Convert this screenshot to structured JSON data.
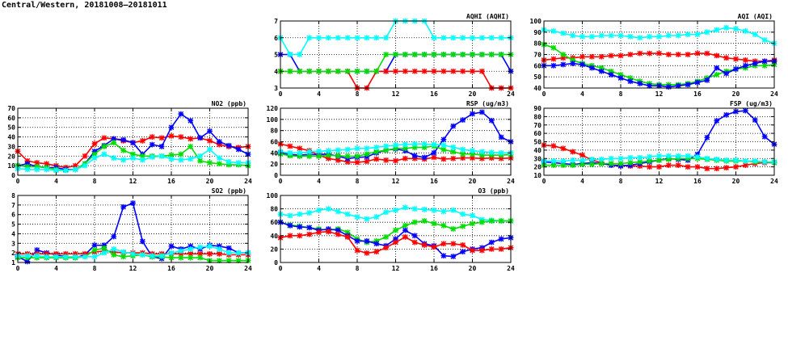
{
  "title": "Central/Western, 20181008–20181011",
  "colors": {
    "blue": "#0000ff",
    "red": "#ff0000",
    "green": "#00dd00",
    "cyan": "#00ffff"
  },
  "chart_data": [
    {
      "id": "aqhi",
      "type": "line",
      "title": "AQHI (AQHI)",
      "x": [
        0,
        1,
        2,
        3,
        4,
        5,
        6,
        7,
        8,
        9,
        10,
        11,
        12,
        13,
        14,
        15,
        16,
        17,
        18,
        19,
        20,
        21,
        22,
        23,
        24
      ],
      "xlim": [
        0,
        24
      ],
      "xticks": [
        0,
        4,
        8,
        12,
        16,
        20,
        24
      ],
      "ylim": [
        3,
        7
      ],
      "yticks": [
        3,
        4,
        5,
        6,
        7
      ],
      "grid": true,
      "series": [
        {
          "name": "blue",
          "color": "#0000ff",
          "values": [
            5,
            5,
            4,
            4,
            4,
            4,
            4,
            4,
            4,
            4,
            4,
            4,
            5,
            5,
            5,
            5,
            5,
            5,
            5,
            5,
            5,
            5,
            5,
            5,
            4
          ]
        },
        {
          "name": "red",
          "color": "#ff0000",
          "values": [
            4,
            4,
            4,
            4,
            4,
            4,
            4,
            4,
            3,
            3,
            4,
            4,
            4,
            4,
            4,
            4,
            4,
            4,
            4,
            4,
            4,
            4,
            3,
            3,
            3
          ]
        },
        {
          "name": "green",
          "color": "#00dd00",
          "values": [
            4,
            4,
            4,
            4,
            4,
            4,
            4,
            4,
            4,
            4,
            4,
            5,
            5,
            5,
            5,
            5,
            5,
            5,
            5,
            5,
            5,
            5,
            5,
            5,
            5
          ]
        },
        {
          "name": "cyan",
          "color": "#00ffff",
          "values": [
            6,
            5,
            5,
            6,
            6,
            6,
            6,
            6,
            6,
            6,
            6,
            6,
            7,
            7,
            7,
            7,
            6,
            6,
            6,
            6,
            6,
            6,
            6,
            6,
            6
          ]
        }
      ]
    },
    {
      "id": "aqi",
      "type": "line",
      "title": "AQI (AQI)",
      "x": [
        0,
        1,
        2,
        3,
        4,
        5,
        6,
        7,
        8,
        9,
        10,
        11,
        12,
        13,
        14,
        15,
        16,
        17,
        18,
        19,
        20,
        21,
        22,
        23,
        24
      ],
      "xlim": [
        0,
        24
      ],
      "xticks": [
        0,
        4,
        8,
        12,
        16,
        20,
        24
      ],
      "ylim": [
        40,
        100
      ],
      "yticks": [
        40,
        50,
        60,
        70,
        80,
        90,
        100
      ],
      "grid": true,
      "series": [
        {
          "name": "cyan",
          "color": "#00ffff",
          "values": [
            92,
            91,
            89,
            87,
            86,
            86,
            87,
            87,
            87,
            86,
            85,
            86,
            86,
            87,
            87,
            88,
            88,
            90,
            92,
            94,
            93,
            91,
            88,
            83,
            80
          ]
        },
        {
          "name": "red",
          "color": "#ff0000",
          "values": [
            65,
            66,
            67,
            67,
            68,
            68,
            68,
            69,
            69,
            70,
            71,
            71,
            71,
            70,
            70,
            70,
            71,
            71,
            69,
            67,
            66,
            65,
            64,
            64,
            65
          ]
        },
        {
          "name": "green",
          "color": "#00dd00",
          "values": [
            79,
            76,
            70,
            65,
            62,
            60,
            58,
            55,
            52,
            49,
            46,
            44,
            43,
            43,
            43,
            44,
            46,
            49,
            52,
            55,
            57,
            58,
            60,
            60,
            61
          ]
        },
        {
          "name": "blue",
          "color": "#0000ff",
          "values": [
            60,
            60,
            61,
            62,
            61,
            58,
            55,
            52,
            49,
            46,
            44,
            42,
            42,
            41,
            42,
            43,
            45,
            47,
            58,
            53,
            57,
            60,
            62,
            64,
            64
          ]
        }
      ]
    },
    {
      "id": "no2",
      "type": "line",
      "title": "NO2 (ppb)",
      "x": [
        0,
        1,
        2,
        3,
        4,
        5,
        6,
        7,
        8,
        9,
        10,
        11,
        12,
        13,
        14,
        15,
        16,
        17,
        18,
        19,
        20,
        21,
        22,
        23,
        24
      ],
      "xlim": [
        0,
        24
      ],
      "xticks": [
        0,
        4,
        8,
        12,
        16,
        20,
        24
      ],
      "ylim": [
        0,
        70
      ],
      "yticks": [
        0,
        10,
        20,
        30,
        40,
        50,
        60,
        70
      ],
      "grid": true,
      "series": [
        {
          "name": "red",
          "color": "#ff0000",
          "values": [
            25,
            15,
            13,
            12,
            10,
            8,
            10,
            20,
            33,
            39,
            38,
            36,
            34,
            36,
            40,
            39,
            41,
            40,
            38,
            39,
            36,
            32,
            30,
            29,
            30
          ]
        },
        {
          "name": "blue",
          "color": "#0000ff",
          "values": [
            10,
            12,
            9,
            8,
            8,
            6,
            6,
            12,
            25,
            31,
            38,
            37,
            34,
            22,
            32,
            30,
            50,
            64,
            57,
            39,
            46,
            35,
            31,
            27,
            22
          ]
        },
        {
          "name": "green",
          "color": "#00dd00",
          "values": [
            10,
            9,
            9,
            8,
            6,
            5,
            6,
            12,
            22,
            30,
            34,
            26,
            22,
            20,
            20,
            20,
            21,
            22,
            30,
            15,
            13,
            12,
            11,
            11,
            10
          ]
        },
        {
          "name": "cyan",
          "color": "#00ffff",
          "values": [
            7,
            6,
            6,
            6,
            5,
            5,
            6,
            10,
            18,
            22,
            18,
            16,
            18,
            16,
            19,
            20,
            17,
            16,
            17,
            20,
            27,
            18,
            14,
            13,
            13
          ]
        }
      ]
    },
    {
      "id": "rsp",
      "type": "line",
      "title": "RSP (ug/m3)",
      "x": [
        0,
        1,
        2,
        3,
        4,
        5,
        6,
        7,
        8,
        9,
        10,
        11,
        12,
        13,
        14,
        15,
        16,
        17,
        18,
        19,
        20,
        21,
        22,
        23,
        24
      ],
      "xlim": [
        0,
        24
      ],
      "xticks": [
        0,
        4,
        8,
        12,
        16,
        20,
        24
      ],
      "ylim": [
        0,
        120
      ],
      "yticks": [
        0,
        20,
        40,
        60,
        80,
        100,
        120
      ],
      "grid": true,
      "series": [
        {
          "name": "red",
          "color": "#ff0000",
          "values": [
            56,
            52,
            48,
            44,
            36,
            30,
            27,
            24,
            23,
            25,
            29,
            27,
            26,
            30,
            30,
            29,
            32,
            29,
            30,
            31,
            31,
            30,
            31,
            30,
            31
          ]
        },
        {
          "name": "blue",
          "color": "#0000ff",
          "values": [
            40,
            37,
            36,
            37,
            37,
            38,
            34,
            30,
            32,
            33,
            40,
            45,
            47,
            44,
            35,
            32,
            40,
            64,
            88,
            99,
            110,
            113,
            98,
            68,
            60
          ]
        },
        {
          "name": "green",
          "color": "#00dd00",
          "values": [
            38,
            35,
            34,
            34,
            34,
            36,
            35,
            34,
            34,
            38,
            42,
            45,
            48,
            48,
            50,
            50,
            52,
            46,
            42,
            38,
            38,
            36,
            36,
            36,
            37
          ]
        },
        {
          "name": "cyan",
          "color": "#00ffff",
          "values": [
            42,
            40,
            40,
            42,
            43,
            44,
            45,
            46,
            48,
            48,
            50,
            52,
            54,
            55,
            56,
            56,
            55,
            54,
            50,
            46,
            44,
            42,
            41,
            40,
            40
          ]
        }
      ]
    },
    {
      "id": "fsp",
      "type": "line",
      "title": "FSP (ug/m3)",
      "x": [
        0,
        1,
        2,
        3,
        4,
        5,
        6,
        7,
        8,
        9,
        10,
        11,
        12,
        13,
        14,
        15,
        16,
        17,
        18,
        19,
        20,
        21,
        22,
        23,
        24
      ],
      "xlim": [
        0,
        24
      ],
      "xticks": [
        0,
        4,
        8,
        12,
        16,
        20,
        24
      ],
      "ylim": [
        10,
        90
      ],
      "yticks": [
        10,
        20,
        30,
        40,
        50,
        60,
        70,
        80,
        90
      ],
      "grid": true,
      "series": [
        {
          "name": "red",
          "color": "#ff0000",
          "values": [
            46,
            45,
            42,
            38,
            34,
            28,
            25,
            22,
            22,
            21,
            21,
            20,
            20,
            22,
            22,
            20,
            20,
            18,
            18,
            19,
            20,
            22,
            24,
            25,
            25
          ]
        },
        {
          "name": "blue",
          "color": "#0000ff",
          "values": [
            26,
            25,
            24,
            23,
            24,
            25,
            24,
            22,
            21,
            22,
            24,
            26,
            28,
            30,
            29,
            28,
            35,
            55,
            75,
            82,
            86,
            87,
            76,
            56,
            47
          ]
        },
        {
          "name": "green",
          "color": "#00dd00",
          "values": [
            22,
            22,
            22,
            22,
            23,
            23,
            24,
            24,
            24,
            25,
            26,
            27,
            28,
            29,
            30,
            30,
            30,
            29,
            28,
            27,
            27,
            27,
            26,
            26,
            25
          ]
        },
        {
          "name": "cyan",
          "color": "#00ffff",
          "values": [
            27,
            27,
            27,
            28,
            28,
            29,
            29,
            30,
            30,
            31,
            31,
            32,
            33,
            33,
            33,
            33,
            32,
            30,
            29,
            28,
            28,
            27,
            27,
            26,
            26
          ]
        }
      ]
    },
    {
      "id": "so2",
      "type": "line",
      "title": "SO2 (ppb)",
      "x": [
        0,
        1,
        2,
        3,
        4,
        5,
        6,
        7,
        8,
        9,
        10,
        11,
        12,
        13,
        14,
        15,
        16,
        17,
        18,
        19,
        20,
        21,
        22,
        23,
        24
      ],
      "xlim": [
        0,
        24
      ],
      "xticks": [
        0,
        4,
        8,
        12,
        16,
        20,
        24
      ],
      "ylim": [
        1,
        8
      ],
      "yticks": [
        1,
        2,
        3,
        4,
        5,
        6,
        7,
        8
      ],
      "grid": true,
      "series": [
        {
          "name": "blue",
          "color": "#0000ff",
          "values": [
            1.6,
            1.1,
            2.3,
            2,
            1.8,
            1.6,
            1.5,
            1.8,
            2.8,
            2.8,
            3.7,
            6.8,
            7.2,
            3.2,
            1.6,
            1.4,
            2.7,
            2.4,
            2.7,
            2.4,
            2.8,
            2.7,
            2.5,
            2,
            2
          ]
        },
        {
          "name": "red",
          "color": "#ff0000",
          "values": [
            1.9,
            1.9,
            1.9,
            1.9,
            1.9,
            1.9,
            1.9,
            1.9,
            2.1,
            2.2,
            2.1,
            2,
            2,
            2,
            1.9,
            1.9,
            1.9,
            1.9,
            1.9,
            1.9,
            1.9,
            1.9,
            1.8,
            1.8,
            1.8
          ]
        },
        {
          "name": "green",
          "color": "#00dd00",
          "values": [
            1.5,
            1.5,
            1.5,
            1.5,
            1.5,
            1.5,
            1.5,
            1.6,
            2.3,
            2.5,
            1.8,
            1.6,
            1.7,
            1.8,
            1.6,
            1.6,
            1.5,
            1.5,
            1.5,
            1.5,
            1.2,
            1.2,
            1.2,
            1.2,
            1.2
          ]
        },
        {
          "name": "cyan",
          "color": "#00ffff",
          "values": [
            1.7,
            1.7,
            1.7,
            1.6,
            1.6,
            1.6,
            1.6,
            1.6,
            1.6,
            2,
            2.4,
            2.1,
            1.9,
            1.8,
            1.7,
            1.7,
            2,
            2.2,
            2.4,
            2.6,
            2.7,
            2.4,
            2,
            2,
            2
          ]
        }
      ]
    },
    {
      "id": "o3",
      "type": "line",
      "title": "O3 (ppb)",
      "x": [
        0,
        1,
        2,
        3,
        4,
        5,
        6,
        7,
        8,
        9,
        10,
        11,
        12,
        13,
        14,
        15,
        16,
        17,
        18,
        19,
        20,
        21,
        22,
        23,
        24
      ],
      "xlim": [
        0,
        24
      ],
      "xticks": [
        0,
        4,
        8,
        12,
        16,
        20,
        24
      ],
      "ylim": [
        0,
        100
      ],
      "yticks": [
        0,
        20,
        40,
        60,
        80,
        100
      ],
      "grid": true,
      "series": [
        {
          "name": "cyan",
          "color": "#00ffff",
          "values": [
            72,
            70,
            72,
            74,
            78,
            80,
            76,
            72,
            68,
            65,
            68,
            75,
            78,
            82,
            80,
            79,
            78,
            76,
            78,
            72,
            70,
            64,
            63,
            62,
            62
          ]
        },
        {
          "name": "green",
          "color": "#00dd00",
          "values": [
            60,
            56,
            54,
            52,
            50,
            48,
            50,
            45,
            35,
            30,
            32,
            38,
            48,
            55,
            60,
            62,
            58,
            55,
            50,
            54,
            58,
            60,
            62,
            62,
            62
          ]
        },
        {
          "name": "blue",
          "color": "#0000ff",
          "values": [
            60,
            55,
            53,
            52,
            48,
            50,
            48,
            40,
            32,
            32,
            28,
            25,
            35,
            48,
            40,
            28,
            25,
            10,
            9,
            16,
            20,
            22,
            30,
            35,
            37
          ]
        },
        {
          "name": "red",
          "color": "#ff0000",
          "values": [
            37,
            40,
            40,
            42,
            45,
            46,
            42,
            38,
            18,
            14,
            16,
            22,
            30,
            38,
            30,
            26,
            23,
            28,
            28,
            26,
            18,
            18,
            20,
            20,
            22
          ]
        }
      ]
    }
  ]
}
